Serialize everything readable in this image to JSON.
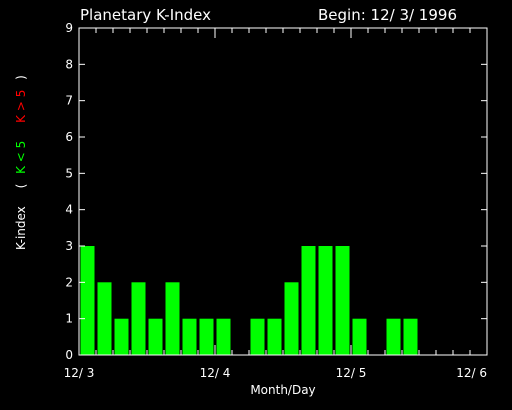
{
  "header": {
    "title": "Planetary K-Index",
    "begin": "Begin: 12/ 3/ 1996"
  },
  "colors": {
    "background": "#000000",
    "axes": "#ffffff",
    "bar_normal": "#00ff00",
    "legend_low": "#00ff00",
    "legend_high": "#ff0000"
  },
  "chart_data": {
    "type": "bar",
    "title": "Planetary K-Index",
    "xlabel": "Month/Day",
    "ylabel": "K-index",
    "ylim": [
      0,
      9
    ],
    "yticks": [
      0,
      1,
      2,
      3,
      4,
      5,
      6,
      7,
      8,
      9
    ],
    "xticks": [
      "12/ 3",
      "12/ 4",
      "12/ 5",
      "12/ 6"
    ],
    "intervals_per_day": 8,
    "days": 3,
    "legend": {
      "open": "(",
      "low": "K < 5",
      "high": "K > 5",
      "close": ")"
    },
    "values": [
      3,
      2,
      1,
      2,
      1,
      2,
      1,
      1,
      1,
      0,
      1,
      1,
      2,
      3,
      3,
      3,
      1,
      0,
      1,
      1,
      0,
      0,
      0,
      0
    ]
  }
}
